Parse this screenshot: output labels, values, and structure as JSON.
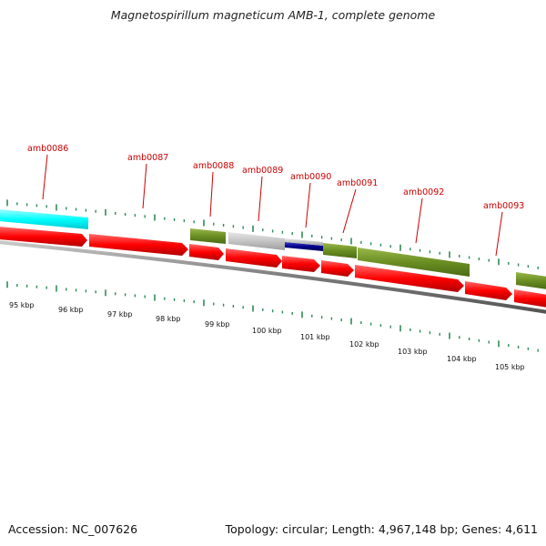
{
  "title": "Magnetospirillum magneticum AMB-1, complete genome",
  "footer": {
    "accession": "Accession: NC_007626",
    "summary": "Topology: circular; Length: 4,967,148 bp; Genes: 4,611"
  },
  "colors": {
    "cds_red": "#ff0000",
    "olive": "#6b8e23",
    "cyan": "#00ffff",
    "grey": "#c0c0c0",
    "navy": "#00008b",
    "tick_green": "#2e8b57",
    "label_red": "#cc0000"
  },
  "gene_labels": [
    "amb0086",
    "amb0087",
    "amb0088",
    "amb0089",
    "amb0090",
    "amb0091",
    "amb0092",
    "amb0093"
  ],
  "kbp_labels": [
    "95 kbp",
    "96 kbp",
    "97 kbp",
    "98 kbp",
    "99 kbp",
    "100 kbp",
    "101 kbp",
    "102 kbp",
    "103 kbp",
    "104 kbp",
    "105 kbp"
  ]
}
